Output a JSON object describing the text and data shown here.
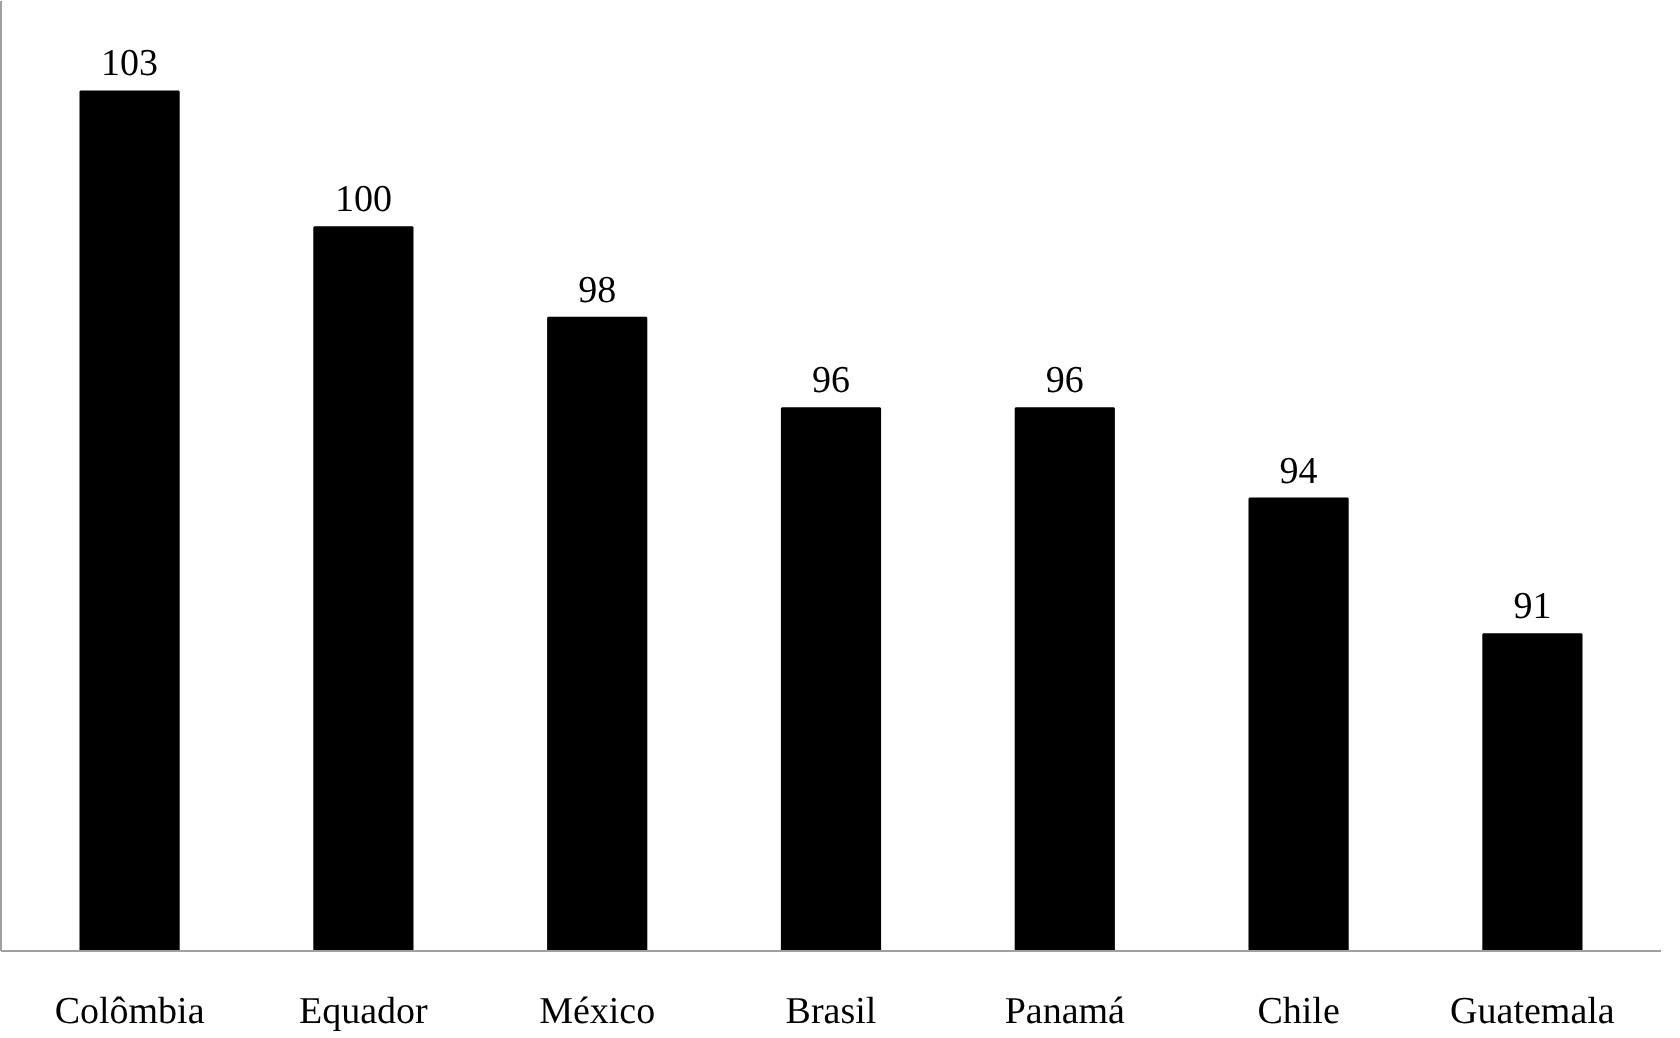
{
  "chart_data": {
    "type": "bar",
    "categories": [
      "Colômbia",
      "Equador",
      "México",
      "Brasil",
      "Panamá",
      "Chile",
      "Guatemala"
    ],
    "values": [
      103,
      100,
      98,
      96,
      96,
      94,
      91
    ],
    "color": "#000000",
    "ylim": [
      84,
      105
    ],
    "data_labels": true,
    "tick_labels": "x",
    "grid": false
  }
}
